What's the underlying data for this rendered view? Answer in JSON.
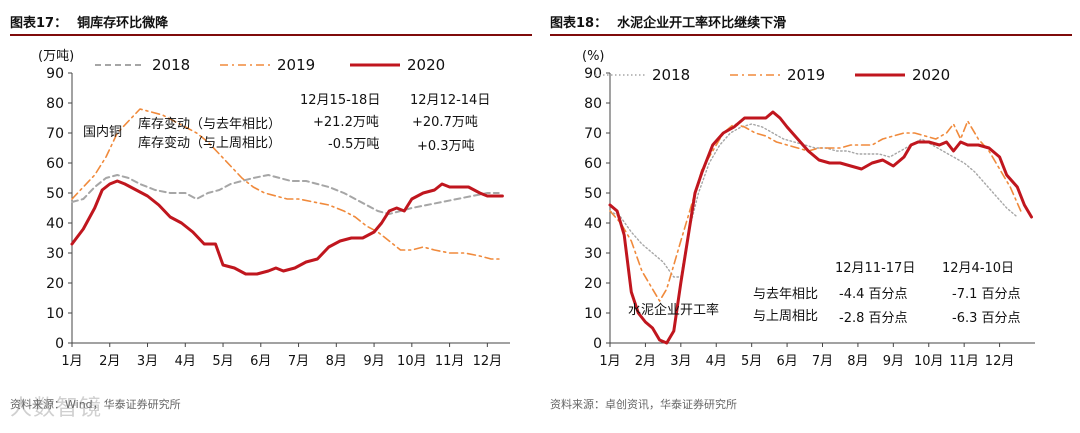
{
  "chart_data": [
    {
      "type": "line",
      "fig_label": "图表17：",
      "title": "铜库存环比微降",
      "unit_label": "(万吨)",
      "ylim": [
        0,
        90
      ],
      "yticks": [
        0,
        10,
        20,
        30,
        40,
        50,
        60,
        70,
        80,
        90
      ],
      "xtick_labels": [
        "1月",
        "2月",
        "3月",
        "4月",
        "5月",
        "6月",
        "7月",
        "8月",
        "9月",
        "10月",
        "11月",
        "12月"
      ],
      "colors": {
        "2018": "#a6a6a6",
        "2019": "#f08a3c",
        "2020": "#c0161e"
      },
      "series": [
        {
          "name": "2018",
          "style": "dashed",
          "points": [
            [
              1,
              47
            ],
            [
              1.3,
              48
            ],
            [
              1.6,
              52
            ],
            [
              1.9,
              55
            ],
            [
              2.2,
              56
            ],
            [
              2.5,
              55
            ],
            [
              2.8,
              53
            ],
            [
              3.2,
              51
            ],
            [
              3.6,
              50
            ],
            [
              4.0,
              50
            ],
            [
              4.3,
              48
            ],
            [
              4.6,
              50
            ],
            [
              4.9,
              51
            ],
            [
              5.2,
              53
            ],
            [
              5.5,
              54
            ],
            [
              5.8,
              55
            ],
            [
              6.2,
              56
            ],
            [
              6.5,
              55
            ],
            [
              6.8,
              54
            ],
            [
              7.2,
              54
            ],
            [
              7.5,
              53
            ],
            [
              7.8,
              52
            ],
            [
              8.2,
              50
            ],
            [
              8.5,
              48
            ],
            [
              8.8,
              46
            ],
            [
              9.1,
              44
            ],
            [
              9.4,
              43
            ],
            [
              9.7,
              44
            ],
            [
              10.0,
              45
            ],
            [
              10.4,
              46
            ],
            [
              10.8,
              47
            ],
            [
              11.2,
              48
            ],
            [
              11.6,
              49
            ],
            [
              12.0,
              50
            ],
            [
              12.3,
              50
            ]
          ]
        },
        {
          "name": "2019",
          "style": "dashdot",
          "points": [
            [
              1,
              48
            ],
            [
              1.3,
              52
            ],
            [
              1.6,
              56
            ],
            [
              1.9,
              62
            ],
            [
              2.2,
              70
            ],
            [
              2.5,
              74
            ],
            [
              2.8,
              78
            ],
            [
              3.1,
              77
            ],
            [
              3.4,
              76
            ],
            [
              3.7,
              74
            ],
            [
              4.0,
              72
            ],
            [
              4.3,
              70
            ],
            [
              4.6,
              67
            ],
            [
              4.9,
              63
            ],
            [
              5.2,
              59
            ],
            [
              5.5,
              55
            ],
            [
              5.8,
              52
            ],
            [
              6.1,
              50
            ],
            [
              6.4,
              49
            ],
            [
              6.7,
              48
            ],
            [
              7.0,
              48
            ],
            [
              7.4,
              47
            ],
            [
              7.8,
              46
            ],
            [
              8.2,
              44
            ],
            [
              8.5,
              42
            ],
            [
              8.8,
              39
            ],
            [
              9.1,
              37
            ],
            [
              9.4,
              34
            ],
            [
              9.7,
              31
            ],
            [
              10.0,
              31
            ],
            [
              10.3,
              32
            ],
            [
              10.6,
              31
            ],
            [
              11.0,
              30
            ],
            [
              11.4,
              30
            ],
            [
              11.8,
              29
            ],
            [
              12.1,
              28
            ],
            [
              12.4,
              28
            ]
          ]
        },
        {
          "name": "2020",
          "style": "solid",
          "points": [
            [
              1,
              33
            ],
            [
              1.3,
              38
            ],
            [
              1.6,
              45
            ],
            [
              1.8,
              51
            ],
            [
              2.0,
              53
            ],
            [
              2.2,
              54
            ],
            [
              2.4,
              53
            ],
            [
              2.7,
              51
            ],
            [
              3.0,
              49
            ],
            [
              3.3,
              46
            ],
            [
              3.6,
              42
            ],
            [
              3.9,
              40
            ],
            [
              4.2,
              37
            ],
            [
              4.5,
              33
            ],
            [
              4.8,
              33
            ],
            [
              5.0,
              26
            ],
            [
              5.3,
              25
            ],
            [
              5.6,
              23
            ],
            [
              5.9,
              23
            ],
            [
              6.2,
              24
            ],
            [
              6.4,
              25
            ],
            [
              6.6,
              24
            ],
            [
              6.9,
              25
            ],
            [
              7.2,
              27
            ],
            [
              7.5,
              28
            ],
            [
              7.8,
              32
            ],
            [
              8.1,
              34
            ],
            [
              8.4,
              35
            ],
            [
              8.7,
              35
            ],
            [
              9.0,
              37
            ],
            [
              9.2,
              40
            ],
            [
              9.4,
              44
            ],
            [
              9.6,
              45
            ],
            [
              9.8,
              44
            ],
            [
              10.0,
              48
            ],
            [
              10.3,
              50
            ],
            [
              10.6,
              51
            ],
            [
              10.8,
              53
            ],
            [
              11.0,
              52
            ],
            [
              11.3,
              52
            ],
            [
              11.5,
              52
            ],
            [
              11.8,
              50
            ],
            [
              12.0,
              49
            ],
            [
              12.2,
              49
            ],
            [
              12.4,
              49
            ]
          ]
        }
      ],
      "legend": [
        "2018",
        "2019",
        "2020"
      ],
      "annotations": {
        "col1_head": "12月15-18日",
        "col2_head": "12月12-14日",
        "row_label": "国内铜",
        "row1": "库存变动（与去年相比）",
        "row1_v1": "+21.2万吨",
        "row1_v2": "+20.7万吨",
        "row2": "库存变动（与上周相比）",
        "row2_v1": "-0.5万吨",
        "row2_v2": "+0.3万吨"
      },
      "source": "资料来源：Wind，华泰证券研究所"
    },
    {
      "type": "line",
      "fig_label": "图表18：",
      "title": "水泥企业开工率环比继续下滑",
      "unit_label": "(%)",
      "ylim": [
        0,
        90
      ],
      "yticks": [
        0,
        10,
        20,
        30,
        40,
        50,
        60,
        70,
        80,
        90
      ],
      "xtick_labels": [
        "1月",
        "2月",
        "3月",
        "4月",
        "5月",
        "6月",
        "7月",
        "8月",
        "9月",
        "10月",
        "11月",
        "12月"
      ],
      "colors": {
        "2018": "#a6a6a6",
        "2019": "#f08a3c",
        "2020": "#c0161e"
      },
      "series": [
        {
          "name": "2018",
          "style": "dotted",
          "points": [
            [
              1,
              44
            ],
            [
              1.3,
              42
            ],
            [
              1.6,
              37
            ],
            [
              1.9,
              33
            ],
            [
              2.2,
              30
            ],
            [
              2.5,
              27
            ],
            [
              2.8,
              22
            ],
            [
              3.0,
              22
            ],
            [
              3.2,
              36
            ],
            [
              3.5,
              50
            ],
            [
              3.8,
              60
            ],
            [
              4.1,
              66
            ],
            [
              4.4,
              70
            ],
            [
              4.7,
              72
            ],
            [
              5.0,
              73
            ],
            [
              5.3,
              72
            ],
            [
              5.6,
              70
            ],
            [
              5.9,
              68
            ],
            [
              6.2,
              67
            ],
            [
              6.5,
              66
            ],
            [
              6.8,
              65
            ],
            [
              7.1,
              65
            ],
            [
              7.4,
              64
            ],
            [
              7.7,
              64
            ],
            [
              8.0,
              63
            ],
            [
              8.3,
              63
            ],
            [
              8.6,
              63
            ],
            [
              8.9,
              62
            ],
            [
              9.2,
              64
            ],
            [
              9.5,
              66
            ],
            [
              9.8,
              68
            ],
            [
              10.1,
              66
            ],
            [
              10.4,
              64
            ],
            [
              10.7,
              62
            ],
            [
              11.0,
              60
            ],
            [
              11.3,
              57
            ],
            [
              11.6,
              53
            ],
            [
              11.9,
              49
            ],
            [
              12.2,
              45
            ],
            [
              12.5,
              42
            ]
          ]
        },
        {
          "name": "2019",
          "style": "dashdot",
          "points": [
            [
              1,
              44
            ],
            [
              1.3,
              40
            ],
            [
              1.6,
              34
            ],
            [
              1.9,
              24
            ],
            [
              2.2,
              18
            ],
            [
              2.4,
              14
            ],
            [
              2.6,
              18
            ],
            [
              2.8,
              26
            ],
            [
              3.0,
              34
            ],
            [
              3.3,
              46
            ],
            [
              3.6,
              58
            ],
            [
              3.9,
              64
            ],
            [
              4.2,
              70
            ],
            [
              4.5,
              73
            ],
            [
              4.8,
              72
            ],
            [
              5.1,
              70
            ],
            [
              5.4,
              69
            ],
            [
              5.7,
              67
            ],
            [
              6.0,
              66
            ],
            [
              6.3,
              65
            ],
            [
              6.6,
              64
            ],
            [
              6.9,
              65
            ],
            [
              7.2,
              65
            ],
            [
              7.5,
              65
            ],
            [
              7.8,
              66
            ],
            [
              8.1,
              66
            ],
            [
              8.4,
              66
            ],
            [
              8.7,
              68
            ],
            [
              9.0,
              69
            ],
            [
              9.3,
              70
            ],
            [
              9.6,
              70
            ],
            [
              9.9,
              69
            ],
            [
              10.2,
              68
            ],
            [
              10.5,
              70
            ],
            [
              10.7,
              73
            ],
            [
              10.9,
              68
            ],
            [
              11.1,
              74
            ],
            [
              11.4,
              68
            ],
            [
              11.7,
              64
            ],
            [
              12.0,
              58
            ],
            [
              12.3,
              52
            ],
            [
              12.6,
              44
            ]
          ]
        },
        {
          "name": "2020",
          "style": "solid",
          "points": [
            [
              1,
              46
            ],
            [
              1.2,
              44
            ],
            [
              1.4,
              36
            ],
            [
              1.6,
              17
            ],
            [
              1.8,
              10
            ],
            [
              2.0,
              7
            ],
            [
              2.2,
              5
            ],
            [
              2.4,
              1
            ],
            [
              2.6,
              0
            ],
            [
              2.8,
              4
            ],
            [
              3.0,
              20
            ],
            [
              3.2,
              35
            ],
            [
              3.4,
              50
            ],
            [
              3.6,
              57
            ],
            [
              3.9,
              66
            ],
            [
              4.2,
              70
            ],
            [
              4.5,
              72
            ],
            [
              4.8,
              75
            ],
            [
              5.1,
              75
            ],
            [
              5.4,
              75
            ],
            [
              5.6,
              77
            ],
            [
              5.8,
              75
            ],
            [
              6.0,
              72
            ],
            [
              6.3,
              68
            ],
            [
              6.6,
              64
            ],
            [
              6.9,
              61
            ],
            [
              7.2,
              60
            ],
            [
              7.5,
              60
            ],
            [
              7.8,
              59
            ],
            [
              8.1,
              58
            ],
            [
              8.4,
              60
            ],
            [
              8.7,
              61
            ],
            [
              9.0,
              59
            ],
            [
              9.3,
              62
            ],
            [
              9.5,
              66
            ],
            [
              9.7,
              67
            ],
            [
              10.0,
              67
            ],
            [
              10.3,
              66
            ],
            [
              10.5,
              67
            ],
            [
              10.7,
              64
            ],
            [
              10.9,
              67
            ],
            [
              11.1,
              66
            ],
            [
              11.4,
              66
            ],
            [
              11.7,
              65
            ],
            [
              12.0,
              62
            ],
            [
              12.2,
              56
            ],
            [
              12.5,
              52
            ],
            [
              12.7,
              46
            ],
            [
              12.9,
              42
            ]
          ]
        }
      ],
      "legend": [
        "2018",
        "2019",
        "2020"
      ],
      "annotations": {
        "col1_head": "12月11-17日",
        "col2_head": "12月4-10日",
        "row_label": "水泥企业开工率",
        "row1": "与去年相比",
        "row1_v1": "-4.4 百分点",
        "row1_v2": "-7.1 百分点",
        "row2": "与上周相比",
        "row2_v1": "-2.8 百分点",
        "row2_v2": "-6.3 百分点"
      },
      "source": "资料来源：卓创资讯，华泰证券研究所"
    }
  ],
  "watermark": "人数智镜"
}
